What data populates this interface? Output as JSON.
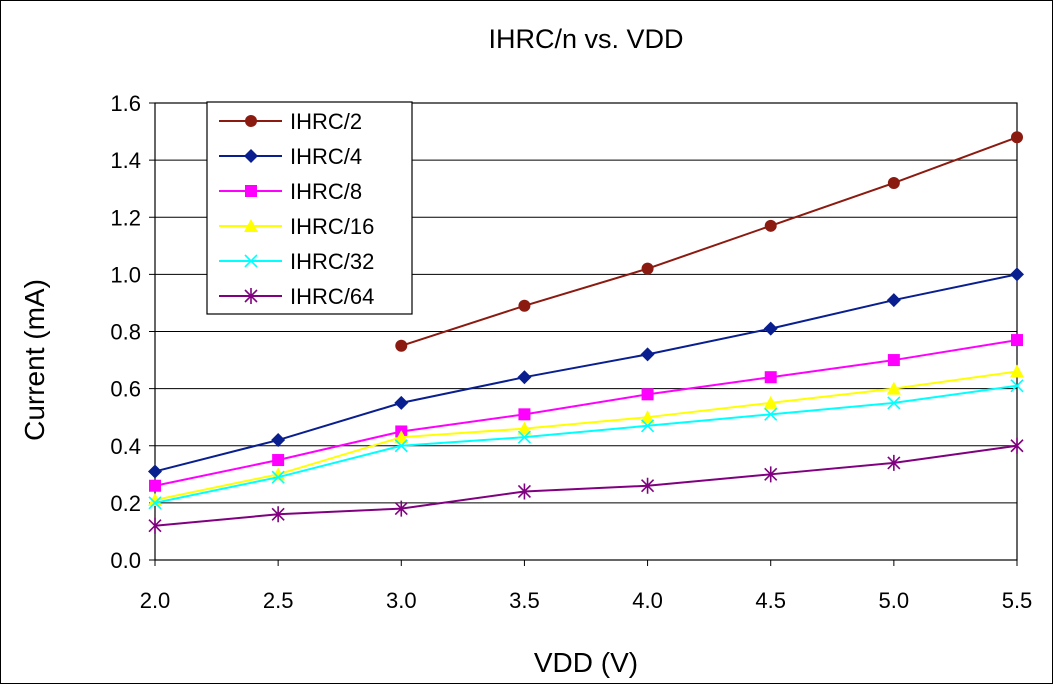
{
  "chart_data": {
    "type": "line",
    "title": "IHRC/n vs. VDD",
    "xlabel": "VDD (V)",
    "ylabel": "Current (mA)",
    "x_ticks": [
      "2.0",
      "2.5",
      "3.0",
      "3.5",
      "4.0",
      "4.5",
      "5.0",
      "5.5"
    ],
    "y_ticks": [
      "0.0",
      "0.2",
      "0.4",
      "0.6",
      "0.8",
      "1.0",
      "1.2",
      "1.4",
      "1.6"
    ],
    "xlim": [
      2.0,
      5.5
    ],
    "ylim": [
      0.0,
      1.6
    ],
    "grid": "horizontal",
    "legend_position": "top-left",
    "series": [
      {
        "name": "IHRC/2",
        "color": "#8B1A10",
        "marker": "circle",
        "x": [
          3.0,
          3.5,
          4.0,
          4.5,
          5.0,
          5.5
        ],
        "values": [
          0.75,
          0.89,
          1.02,
          1.17,
          1.32,
          1.48
        ]
      },
      {
        "name": "IHRC/4",
        "color": "#0A1F8F",
        "marker": "diamond",
        "x": [
          2.0,
          2.5,
          3.0,
          3.5,
          4.0,
          4.5,
          5.0,
          5.5
        ],
        "values": [
          0.31,
          0.42,
          0.55,
          0.64,
          0.72,
          0.81,
          0.91,
          1.0
        ]
      },
      {
        "name": "IHRC/8",
        "color": "#FF00FF",
        "marker": "square",
        "x": [
          2.0,
          2.5,
          3.0,
          3.5,
          4.0,
          4.5,
          5.0,
          5.5
        ],
        "values": [
          0.26,
          0.35,
          0.45,
          0.51,
          0.58,
          0.64,
          0.7,
          0.77
        ]
      },
      {
        "name": "IHRC/16",
        "color": "#FFFF00",
        "marker": "triangle",
        "x": [
          2.0,
          2.5,
          3.0,
          3.5,
          4.0,
          4.5,
          5.0,
          5.5
        ],
        "values": [
          0.21,
          0.3,
          0.43,
          0.46,
          0.5,
          0.55,
          0.6,
          0.66
        ]
      },
      {
        "name": "IHRC/32",
        "color": "#00FFFF",
        "marker": "x",
        "x": [
          2.0,
          2.5,
          3.0,
          3.5,
          4.0,
          4.5,
          5.0,
          5.5
        ],
        "values": [
          0.2,
          0.29,
          0.4,
          0.43,
          0.47,
          0.51,
          0.55,
          0.61
        ]
      },
      {
        "name": "IHRC/64",
        "color": "#800080",
        "marker": "star",
        "x": [
          2.0,
          2.5,
          3.0,
          3.5,
          4.0,
          4.5,
          5.0,
          5.5
        ],
        "values": [
          0.12,
          0.16,
          0.18,
          0.24,
          0.26,
          0.3,
          0.34,
          0.4
        ]
      }
    ]
  }
}
